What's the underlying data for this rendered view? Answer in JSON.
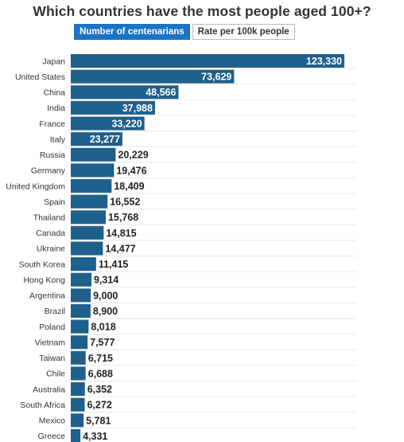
{
  "title": "Which countries have the most people aged 100+?",
  "toggle": {
    "option_active": "Number of centenarians",
    "option_inactive": "Rate per 100k people"
  },
  "colors": {
    "bar": "#1f5f8b",
    "accent": "#1a73c6",
    "label_inside": "#ffffff",
    "label_outside": "#222222",
    "grid": "#e8e8e8"
  },
  "chart_data": {
    "type": "bar",
    "orientation": "horizontal",
    "title": "Which countries have the most people aged 100+?",
    "categories": [
      "Japan",
      "United States",
      "China",
      "India",
      "France",
      "Italy",
      "Russia",
      "Germany",
      "United Kingdom",
      "Spain",
      "Thailand",
      "Canada",
      "Ukraine",
      "South Korea",
      "Hong Kong",
      "Argentina",
      "Brazil",
      "Poland",
      "Vietnam",
      "Taiwan",
      "Chile",
      "Australia",
      "South Africa",
      "Mexico",
      "Greece"
    ],
    "values": [
      123330,
      73629,
      48566,
      37988,
      33220,
      23277,
      20229,
      19476,
      18409,
      16552,
      15768,
      14815,
      14477,
      11415,
      9314,
      9000,
      8900,
      8018,
      7577,
      6715,
      6688,
      6352,
      6272,
      5781,
      4331
    ],
    "value_labels": [
      "123,330",
      "73,629",
      "48,566",
      "37,988",
      "33,220",
      "23,277",
      "20,229",
      "19,476",
      "18,409",
      "16,552",
      "15,768",
      "14,815",
      "14,477",
      "11,415",
      "9,314",
      "9,000",
      "8,900",
      "8,018",
      "7,577",
      "6,715",
      "6,688",
      "6,352",
      "6,272",
      "5,781",
      "4,331"
    ],
    "xlim": [
      0,
      123330
    ],
    "grid": true,
    "legend": "none"
  }
}
